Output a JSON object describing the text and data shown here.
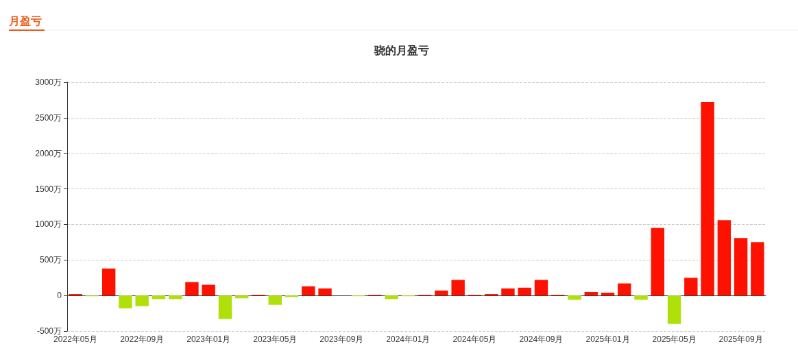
{
  "chart_data": {
    "type": "bar",
    "title": "骁的月盈亏",
    "annotations": [
      "月盈亏"
    ],
    "categories": [
      "2022年05月",
      null,
      null,
      null,
      "2022年09月",
      null,
      null,
      null,
      "2023年01月",
      null,
      null,
      null,
      "2023年05月",
      null,
      null,
      null,
      "2023年09月",
      null,
      null,
      null,
      "2024年01月",
      null,
      null,
      null,
      "2024年05月",
      null,
      null,
      null,
      "2024年09月",
      null,
      null,
      null,
      "2025年01月",
      null,
      null,
      null,
      "2025年05月",
      null,
      null,
      null,
      "2025年09月",
      null
    ],
    "values": [
      20,
      -10,
      380,
      -180,
      -150,
      -50,
      -50,
      190,
      150,
      -330,
      -40,
      10,
      -130,
      -20,
      130,
      100,
      null,
      -10,
      10,
      -50,
      -10,
      10,
      70,
      220,
      10,
      20,
      100,
      110,
      220,
      10,
      -60,
      50,
      40,
      170,
      -60,
      950,
      -400,
      250,
      2720,
      1060,
      810,
      750
    ],
    "colors": [
      "#ff1100",
      "#b0e00a",
      "#ff1100",
      "#b0e00a",
      "#b0e00a",
      "#b0e00a",
      "#b0e00a",
      "#ff1100",
      "#ff1100",
      "#b0e00a",
      "#b0e00a",
      "#ff1100",
      "#b0e00a",
      "#b0e00a",
      "#ff1100",
      "#ff1100",
      "#ff1100",
      "#b0e00a",
      "#ff1100",
      "#b0e00a",
      "#b0e00a",
      "#ff1100",
      "#ff1100",
      "#ff1100",
      "#ff1100",
      "#ff1100",
      "#ff1100",
      "#ff1100",
      "#ff1100",
      "#ff1100",
      "#b0e00a",
      "#ff1100",
      "#ff1100",
      "#ff1100",
      "#b0e00a",
      "#ff1100",
      "#b0e00a",
      "#ff1100",
      "#ff1100",
      "#ff1100",
      "#ff1100",
      "#ff1100"
    ],
    "ylim": [
      -500,
      3000
    ],
    "yticks": [
      {
        "value": -500,
        "label": "-500万"
      },
      0,
      {
        "value": 500,
        "label": "500万"
      },
      {
        "value": 1000,
        "label": "1000万"
      },
      {
        "value": 1500,
        "label": "1500万"
      },
      {
        "value": 2000,
        "label": "2000万"
      },
      {
        "value": 2500,
        "label": "2500万"
      },
      {
        "value": 3000,
        "label": "3000万"
      }
    ],
    "grid": "y"
  }
}
